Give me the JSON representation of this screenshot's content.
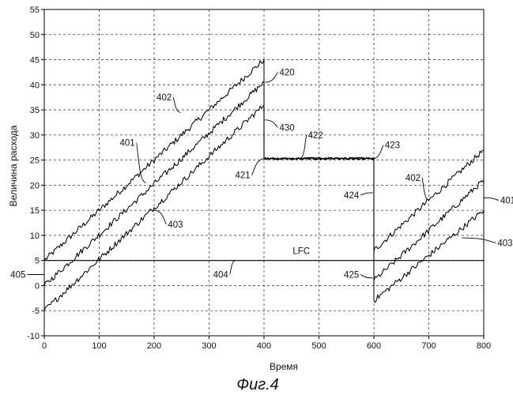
{
  "chart_data": {
    "type": "line",
    "title": "",
    "xlabel": "Время",
    "ylabel": "Величина расхода",
    "xlim": [
      0,
      800
    ],
    "ylim": [
      -10,
      55
    ],
    "xticks": [
      0,
      100,
      200,
      300,
      400,
      500,
      600,
      700,
      800
    ],
    "yticks": [
      -10,
      -5,
      0,
      5,
      10,
      15,
      20,
      25,
      30,
      35,
      40,
      45,
      50,
      55
    ],
    "grid": true,
    "legend": "none",
    "series": [
      {
        "id": "series-402",
        "color": "#000000",
        "x": [
          0,
          400,
          400,
          600,
          600,
          800
        ],
        "y": [
          5,
          45,
          25.3,
          25.3,
          7,
          27
        ]
      },
      {
        "id": "series-401",
        "color": "#000000",
        "x": [
          0,
          400,
          400,
          600,
          600,
          800
        ],
        "y": [
          0,
          40.5,
          25.3,
          25.3,
          1,
          21
        ]
      },
      {
        "id": "series-403",
        "color": "#000000",
        "x": [
          0,
          400,
          400,
          600,
          600,
          800
        ],
        "y": [
          -5,
          36,
          25.3,
          25.3,
          -3,
          15
        ]
      },
      {
        "id": "lfc-line",
        "color": "#000000",
        "x": [
          0,
          800
        ],
        "y": [
          5,
          5
        ]
      }
    ],
    "annotations": [
      {
        "text": "402",
        "x": 248,
        "y": 34.5,
        "tx": 232,
        "ty": 37.5
      },
      {
        "text": "401",
        "x": 185,
        "y": 20.5,
        "tx": 165,
        "ty": 28.5
      },
      {
        "text": "403",
        "x": 200,
        "y": 15,
        "tx": 225,
        "ty": 12.2
      },
      {
        "text": "420",
        "x": 402,
        "y": 40.5,
        "tx": 428,
        "ty": 42.5
      },
      {
        "text": "430",
        "x": 402,
        "y": 33,
        "tx": 428,
        "ty": 31.5
      },
      {
        "text": "421",
        "x": 402,
        "y": 25.3,
        "tx": 375,
        "ty": 22
      },
      {
        "text": "422",
        "x": 465,
        "y": 25.3,
        "tx": 480,
        "ty": 30
      },
      {
        "text": "423",
        "x": 598,
        "y": 25.3,
        "tx": 620,
        "ty": 28
      },
      {
        "text": "424",
        "x": 598,
        "y": 18.5,
        "tx": 573,
        "ty": 18
      },
      {
        "text": "425",
        "x": 598,
        "y": 1.5,
        "tx": 573,
        "ty": 2.2
      },
      {
        "text": "404",
        "x": 348,
        "y": 5,
        "tx": 335,
        "ty": 2.2
      },
      {
        "text": "405",
        "x": 0,
        "y": 2.2,
        "tx": -34,
        "ty": 2.2
      },
      {
        "text": "402",
        "x": 700,
        "y": 17,
        "tx": 685,
        "ty": 21.5
      },
      {
        "text": "401",
        "x": 800,
        "y": 17.5,
        "tx": 830,
        "ty": 17
      },
      {
        "text": "403",
        "x": 760,
        "y": 9.5,
        "tx": 825,
        "ty": 8.5
      }
    ],
    "inline_labels": [
      {
        "text": "LFC",
        "x": 468,
        "y": 6.3
      }
    ]
  },
  "caption": "Фиг.4"
}
